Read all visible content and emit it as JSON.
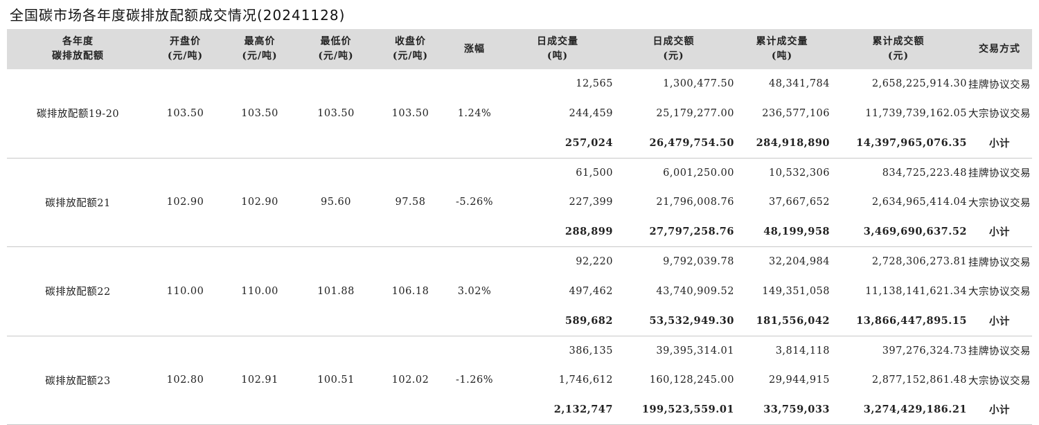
{
  "title": "全国碳市场各年度碳排放配额成交情况(20241128)",
  "headers": [
    [
      "各年度",
      "碳排放配额"
    ],
    [
      "开盘价",
      "(元/吨)"
    ],
    [
      "最高价",
      "(元/吨)"
    ],
    [
      "最低价",
      "(元/吨)"
    ],
    [
      "收盘价",
      "(元/吨)"
    ],
    [
      "涨幅"
    ],
    [
      "日成交量",
      "(吨)"
    ],
    [
      "日成交额",
      "(元)"
    ],
    [
      "累计成交量",
      "(吨)"
    ],
    [
      "累计成交额",
      "(元)"
    ],
    [
      "交易方式"
    ]
  ],
  "groups": [
    {
      "name": "碳排放配额19-20",
      "open": "103.50",
      "high": "103.50",
      "low": "103.50",
      "close": "103.50",
      "change": "1.24%",
      "rows": [
        {
          "vol": "12,565",
          "amt": "1,300,477.50",
          "cvol": "48,341,784",
          "camt": "2,658,225,914.30",
          "mode": "挂牌协议交易"
        },
        {
          "vol": "244,459",
          "amt": "25,179,277.00",
          "cvol": "236,577,106",
          "camt": "11,739,739,162.05",
          "mode": "大宗协议交易"
        },
        {
          "vol": "257,024",
          "amt": "26,479,754.50",
          "cvol": "284,918,890",
          "camt": "14,397,965,076.35",
          "mode": "小计"
        }
      ]
    },
    {
      "name": "碳排放配额21",
      "open": "102.90",
      "high": "102.90",
      "low": "95.60",
      "close": "97.58",
      "change": "-5.26%",
      "rows": [
        {
          "vol": "61,500",
          "amt": "6,001,250.00",
          "cvol": "10,532,306",
          "camt": "834,725,223.48",
          "mode": "挂牌协议交易"
        },
        {
          "vol": "227,399",
          "amt": "21,796,008.76",
          "cvol": "37,667,652",
          "camt": "2,634,965,414.04",
          "mode": "大宗协议交易"
        },
        {
          "vol": "288,899",
          "amt": "27,797,258.76",
          "cvol": "48,199,958",
          "camt": "3,469,690,637.52",
          "mode": "小计"
        }
      ]
    },
    {
      "name": "碳排放配额22",
      "open": "110.00",
      "high": "110.00",
      "low": "101.88",
      "close": "106.18",
      "change": "3.02%",
      "rows": [
        {
          "vol": "92,220",
          "amt": "9,792,039.78",
          "cvol": "32,204,984",
          "camt": "2,728,306,273.81",
          "mode": "挂牌协议交易"
        },
        {
          "vol": "497,462",
          "amt": "43,740,909.52",
          "cvol": "149,351,058",
          "camt": "11,138,141,621.34",
          "mode": "大宗协议交易"
        },
        {
          "vol": "589,682",
          "amt": "53,532,949.30",
          "cvol": "181,556,042",
          "camt": "13,866,447,895.15",
          "mode": "小计"
        }
      ]
    },
    {
      "name": "碳排放配额23",
      "open": "102.80",
      "high": "102.91",
      "low": "100.51",
      "close": "102.02",
      "change": "-1.26%",
      "rows": [
        {
          "vol": "386,135",
          "amt": "39,395,314.01",
          "cvol": "3,814,118",
          "camt": "397,276,324.73",
          "mode": "挂牌协议交易"
        },
        {
          "vol": "1,746,612",
          "amt": "160,128,245.00",
          "cvol": "29,944,915",
          "camt": "2,877,152,861.48",
          "mode": "大宗协议交易"
        },
        {
          "vol": "2,132,747",
          "amt": "199,523,559.01",
          "cvol": "33,759,033",
          "camt": "3,274,429,186.21",
          "mode": "小计"
        }
      ]
    }
  ]
}
